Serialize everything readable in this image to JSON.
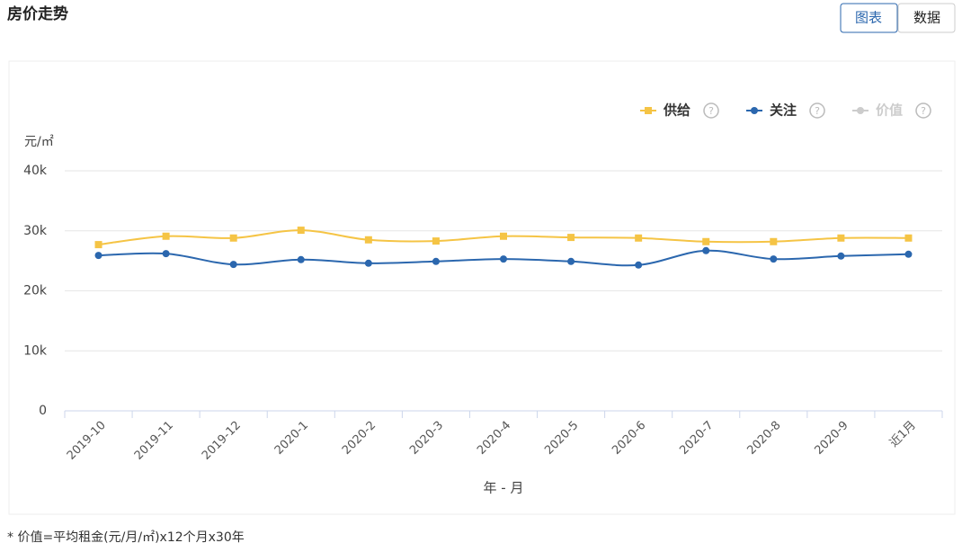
{
  "header": {
    "title": "房价走势",
    "tabs": [
      "图表",
      "数据"
    ]
  },
  "chart_data": {
    "type": "line",
    "y_label": "元/㎡",
    "x_label": "年 - 月",
    "categories": [
      "2019-10",
      "2019-11",
      "2019-12",
      "2020-1",
      "2020-2",
      "2020-3",
      "2020-4",
      "2020-5",
      "2020-6",
      "2020-7",
      "2020-8",
      "2020-9",
      "近1月"
    ],
    "series": [
      {
        "name": "供给",
        "color": "#f5c445",
        "marker": "square",
        "visible": true,
        "values": [
          27700,
          29100,
          28800,
          30100,
          28500,
          28300,
          29100,
          28900,
          28800,
          28200,
          28200,
          28800,
          28800
        ]
      },
      {
        "name": "关注",
        "color": "#2b67ae",
        "marker": "circle",
        "visible": true,
        "values": [
          25900,
          26200,
          24400,
          25200,
          24600,
          24900,
          25300,
          24900,
          24300,
          26700,
          25300,
          25800,
          26100
        ]
      },
      {
        "name": "价值",
        "color": "#cccccc",
        "marker": "circle",
        "visible": false,
        "values": [
          null,
          null,
          null,
          null,
          null,
          null,
          null,
          null,
          null,
          null,
          null,
          null,
          null
        ]
      }
    ],
    "ylim": [
      0,
      40000
    ],
    "yticks": [
      0,
      {
        "value": 10000,
        "label": "10k"
      },
      {
        "value": 20000,
        "label": "20k"
      },
      {
        "value": 30000,
        "label": "30k"
      },
      {
        "value": 40000,
        "label": "40k"
      }
    ],
    "grid": true,
    "legend": "top-right"
  },
  "footnote": "* 价值=平均租金(元/月/㎡)x12个月x30年"
}
